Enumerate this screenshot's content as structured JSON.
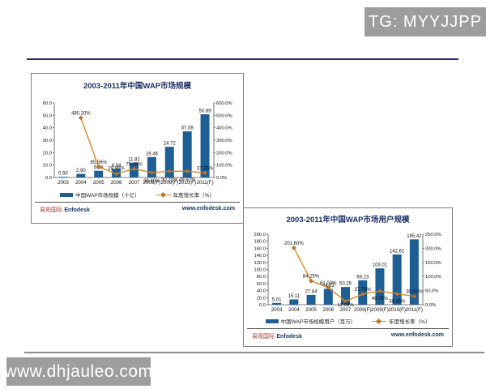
{
  "watermarks": {
    "top": "TG: MYYJJPP",
    "bottom": "www.dhjauleo.com"
  },
  "chart_data": [
    {
      "type": "bar+line",
      "title": "2003-2011年中国WAP市场规模",
      "categories": [
        "2003",
        "2004",
        "2005",
        "2006",
        "2007",
        "2008(F)",
        "2009(F)",
        "2010(F)",
        "2011(F)"
      ],
      "series": [
        {
          "name": "中国WAP市场规模（十亿）",
          "type": "bar",
          "axis": "left",
          "values": [
            0.5,
            2.9,
            5.38,
            6.94,
            11.81,
            16.46,
            24.72,
            37.08,
            50.89
          ],
          "labels": [
            "0.50",
            "2.90",
            "5.38",
            "6.94",
            "11.81",
            "16.46",
            "24.72",
            "37.08",
            "50.89"
          ]
        },
        {
          "name": "年度增长率（%）",
          "type": "line",
          "axis": "right",
          "values": [
            null,
            480.2,
            85.56,
            28.96,
            70.05,
            39.4,
            50.25,
            49.97,
            37.25
          ],
          "labels": [
            "",
            "480.20%",
            "85.56%",
            "28.96%",
            "70.05%",
            "39.40%",
            "50.25%",
            "49.97%",
            "37.25%"
          ]
        }
      ],
      "left_axis": {
        "min": 0,
        "max": 60,
        "ticks": [
          "0.0",
          "10.0",
          "20.0",
          "30.0",
          "40.0",
          "50.0",
          "60.0"
        ]
      },
      "right_axis": {
        "min": 0,
        "max": 600,
        "ticks": [
          "0.0%",
          "100.0%",
          "200.0%",
          "300.0%",
          "400.0%",
          "500.0%",
          "600.0%"
        ]
      },
      "legend_position": "bottom",
      "grid": false,
      "footer": {
        "brand_cn": "易观国际",
        "separator": "·",
        "brand_en": "Enfodesk",
        "site": "www.enfodesk.com"
      }
    },
    {
      "type": "bar+line",
      "title": "2003-2011年中国WAP市场用户规模",
      "categories": [
        "2003",
        "2004",
        "2005",
        "2006",
        "2007",
        "2008(F)",
        "2009(F)",
        "2010(F)",
        "2011(F)"
      ],
      "series": [
        {
          "name": "中国WAP市场规模用户（百万）",
          "type": "bar",
          "axis": "left",
          "values": [
            5.01,
            15.11,
            27.84,
            44.83,
            50.25,
            69.23,
            103.01,
            142.61,
            185.42
          ],
          "labels": [
            "5.01",
            "15.11",
            "27.84",
            "44.83",
            "50.25",
            "69.23",
            "103.01",
            "142.61",
            "185.42"
          ]
        },
        {
          "name": "年度增长率（%）",
          "type": "line",
          "axis": "right",
          "values": [
            null,
            201.6,
            84.25,
            61.03,
            12.08,
            37.79,
            48.78,
            38.45,
            30.02
          ],
          "labels": [
            "",
            "201.60%",
            "84.25%",
            "61.03%",
            "12.08%",
            "37.79%",
            "48.78%",
            "38.45%",
            "30.02%"
          ]
        }
      ],
      "left_axis": {
        "min": 0,
        "max": 200,
        "ticks": [
          "0.0",
          "20.0",
          "40.0",
          "60.0",
          "80.0",
          "100.0",
          "120.0",
          "140.0",
          "160.0",
          "180.0",
          "200.0"
        ]
      },
      "right_axis": {
        "min": 0,
        "max": 250,
        "ticks": [
          "0.0%",
          "50.0%",
          "100.0%",
          "150.0%",
          "200.0%",
          "250.0%"
        ]
      },
      "legend_position": "bottom",
      "grid": false,
      "footer": {
        "brand_cn": "易观国际",
        "separator": "·",
        "brand_en": "Enfodesk",
        "site": "www.enfodesk.com"
      }
    }
  ],
  "colors": {
    "bar": "#1e5f96",
    "line": "#d88a28",
    "marker": "#c0762a",
    "title": "#1b2f66",
    "watermark_bg": "#9d9d9d"
  }
}
